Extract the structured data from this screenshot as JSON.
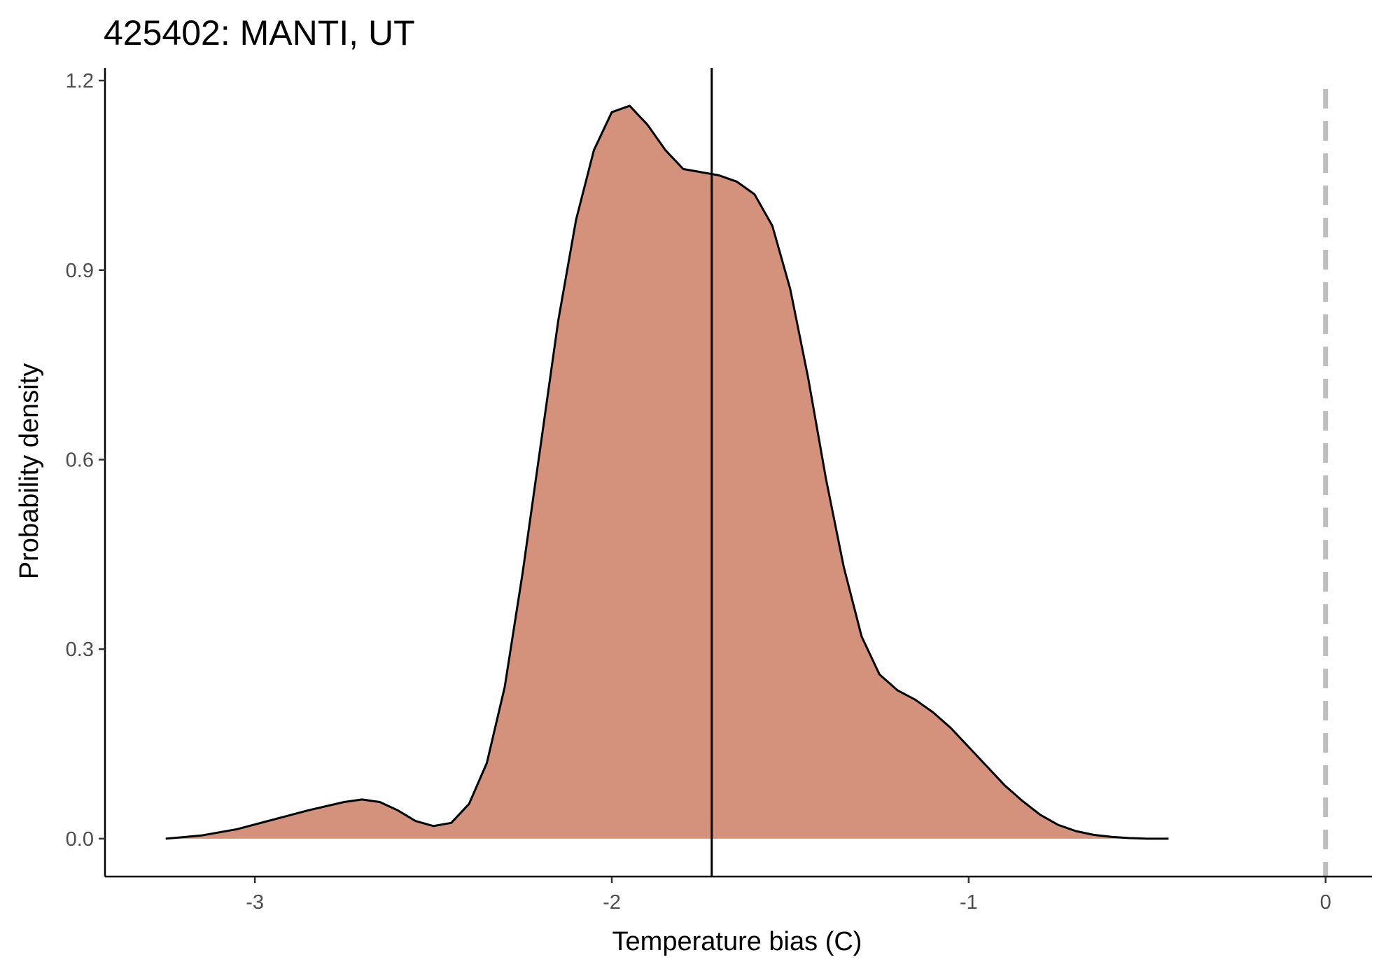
{
  "chart_data": {
    "type": "area",
    "title": "425402: MANTI, UT",
    "xlabel": "Temperature bias (C)",
    "ylabel": "Probability density",
    "xlim": [
      -3.42,
      0.13
    ],
    "ylim": [
      -0.06,
      1.22
    ],
    "x_ticks": [
      {
        "value": -3,
        "label": "-3"
      },
      {
        "value": -2,
        "label": "-2"
      },
      {
        "value": -1,
        "label": "-1"
      },
      {
        "value": 0,
        "label": "0"
      }
    ],
    "y_ticks": [
      {
        "value": 0.0,
        "label": "0.0"
      },
      {
        "value": 0.3,
        "label": "0.3"
      },
      {
        "value": 0.6,
        "label": "0.6"
      },
      {
        "value": 0.9,
        "label": "0.9"
      },
      {
        "value": 1.2,
        "label": "1.2"
      }
    ],
    "grid": false,
    "legend": "none",
    "density": {
      "fill_color": "#D4917C",
      "line_color": "#000000",
      "x": [
        -3.25,
        -3.15,
        -3.05,
        -2.95,
        -2.85,
        -2.75,
        -2.7,
        -2.65,
        -2.6,
        -2.55,
        -2.5,
        -2.45,
        -2.4,
        -2.35,
        -2.3,
        -2.25,
        -2.2,
        -2.15,
        -2.1,
        -2.05,
        -2.0,
        -1.95,
        -1.9,
        -1.85,
        -1.8,
        -1.75,
        -1.7,
        -1.65,
        -1.6,
        -1.55,
        -1.5,
        -1.45,
        -1.4,
        -1.35,
        -1.3,
        -1.25,
        -1.2,
        -1.15,
        -1.1,
        -1.05,
        -1.0,
        -0.95,
        -0.9,
        -0.85,
        -0.8,
        -0.75,
        -0.7,
        -0.65,
        -0.6,
        -0.55,
        -0.5,
        -0.44
      ],
      "y": [
        0.0,
        0.005,
        0.015,
        0.03,
        0.045,
        0.058,
        0.062,
        0.058,
        0.045,
        0.028,
        0.02,
        0.025,
        0.055,
        0.12,
        0.24,
        0.42,
        0.62,
        0.82,
        0.98,
        1.09,
        1.15,
        1.16,
        1.13,
        1.09,
        1.06,
        1.055,
        1.05,
        1.04,
        1.02,
        0.97,
        0.87,
        0.73,
        0.57,
        0.43,
        0.32,
        0.26,
        0.235,
        0.22,
        0.2,
        0.175,
        0.145,
        0.115,
        0.085,
        0.06,
        0.038,
        0.022,
        0.012,
        0.006,
        0.003,
        0.001,
        0.0,
        0.0
      ]
    },
    "median_line": {
      "x": -1.72,
      "color": "#000000"
    },
    "reference_line": {
      "x": 0,
      "color": "#BEBEBE",
      "style": "dashed"
    }
  }
}
